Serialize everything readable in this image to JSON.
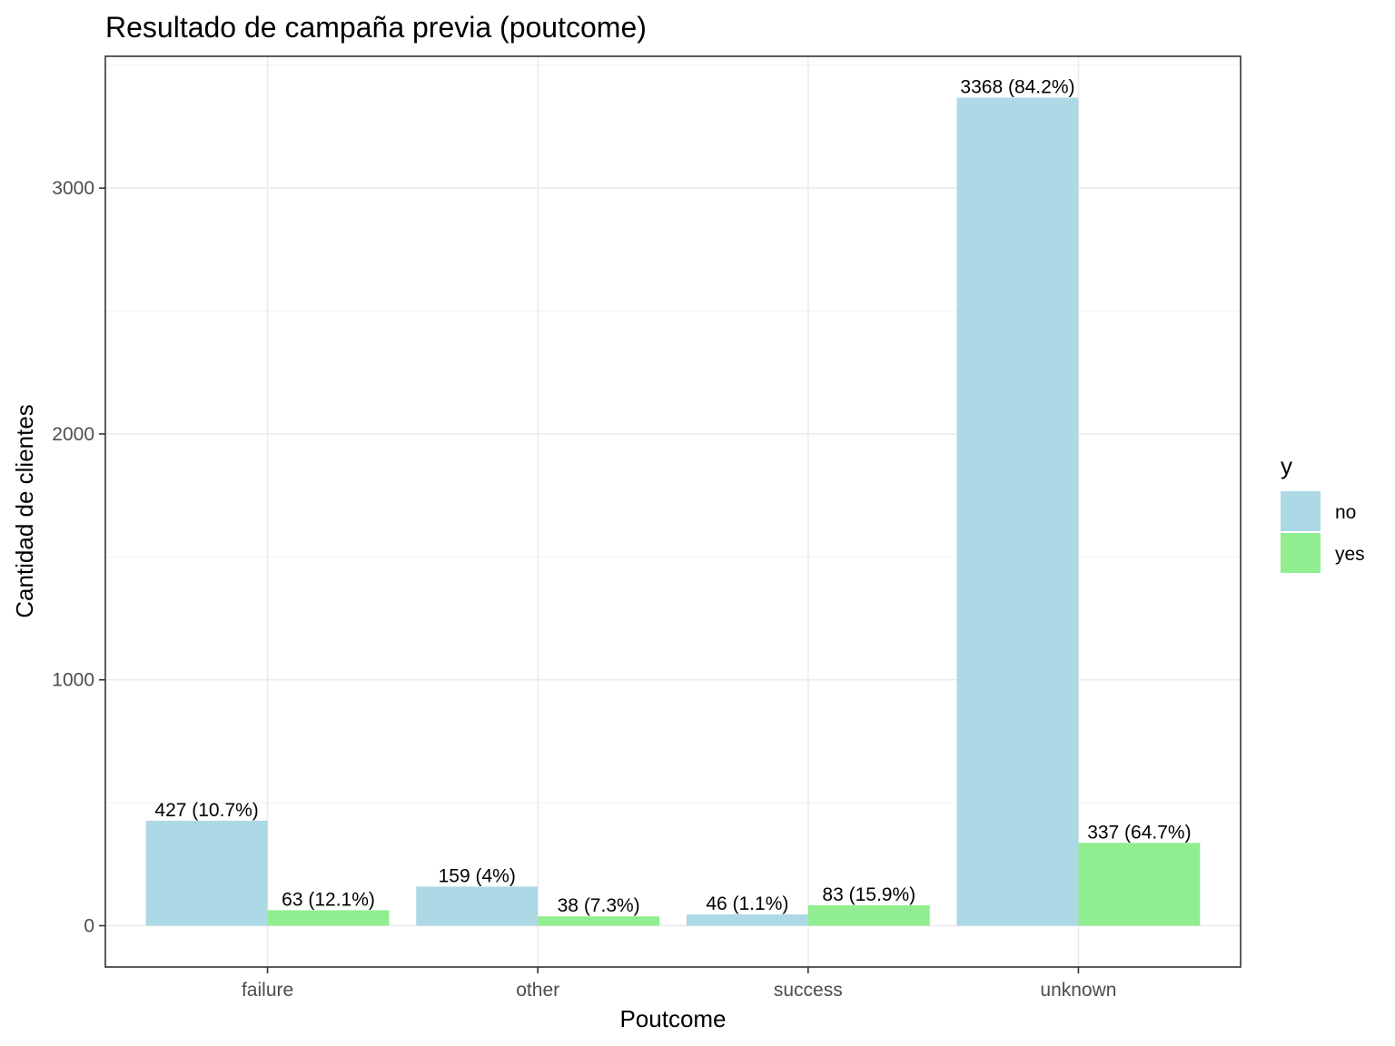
{
  "chart_data": {
    "type": "bar",
    "title": "Resultado de campaña previa (poutcome)",
    "xlabel": "Poutcome",
    "ylabel": "Cantidad de clientes",
    "categories": [
      "failure",
      "other",
      "success",
      "unknown"
    ],
    "series": [
      {
        "name": "no",
        "color": "#add8e6",
        "values": [
          427,
          159,
          46,
          3368
        ],
        "labels": [
          "427 (10.7%)",
          "159 (4%)",
          "46 (1.1%)",
          "3368 (84.2%)"
        ]
      },
      {
        "name": "yes",
        "color": "#90ee90",
        "values": [
          63,
          38,
          83,
          337
        ],
        "labels": [
          "63 (12.1%)",
          "38 (7.3%)",
          "83 (15.9%)",
          "337 (64.7%)"
        ]
      }
    ],
    "ylim": [
      -168,
      3536
    ],
    "yticks": [
      0,
      1000,
      2000,
      3000
    ],
    "ytick_labels": [
      "0",
      "1000",
      "2000",
      "3000"
    ],
    "grid": true,
    "legend": {
      "title": "y",
      "position": "right"
    }
  }
}
